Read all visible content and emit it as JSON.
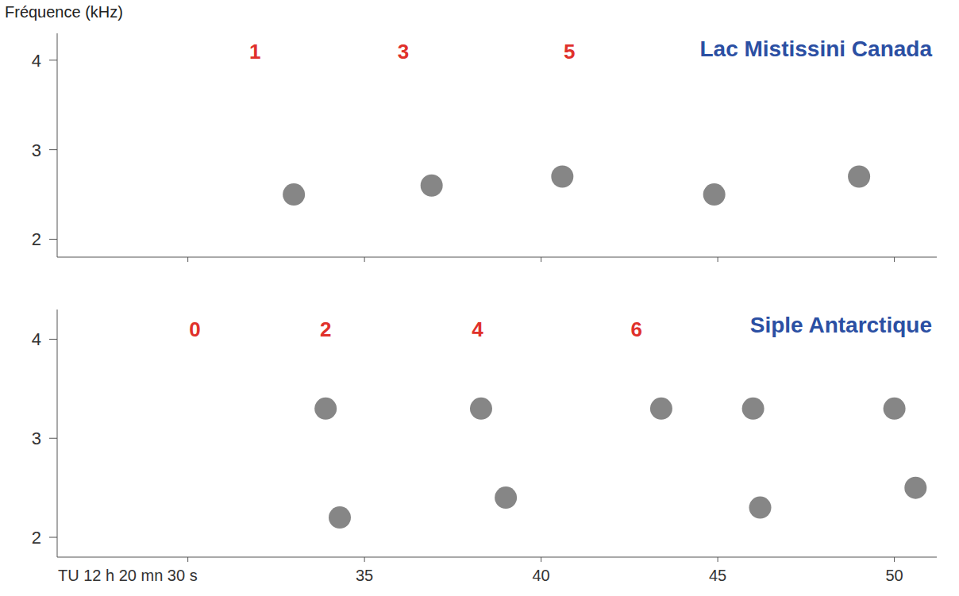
{
  "chart_data": [
    {
      "type": "scatter",
      "title": "Lac Mistissini Canada",
      "ylabel": "Fréquence (kHz)",
      "x": [
        33.0,
        36.9,
        40.6,
        44.9,
        49.0
      ],
      "values": [
        2.5,
        2.6,
        2.7,
        2.5,
        2.7
      ],
      "color": "#222222",
      "marker": "circle",
      "xlim": [
        26.3,
        51.2
      ],
      "ylim": [
        1.8,
        4.3
      ],
      "xticks": [
        30,
        35,
        40,
        45,
        50
      ],
      "yticks": [
        2,
        3,
        4
      ],
      "tick_labels": "y",
      "annotations": [
        {
          "text": "1",
          "x": 31.9,
          "y": 4.1,
          "color": "#e0312b"
        },
        {
          "text": "3",
          "x": 36.1,
          "y": 4.1,
          "color": "#e0312b"
        },
        {
          "text": "5",
          "x": 40.8,
          "y": 4.1,
          "color": "#e0312b"
        }
      ]
    },
    {
      "type": "scatter",
      "title": "Siple Antarctique",
      "x": [
        33.9,
        34.3,
        38.3,
        39.0,
        43.4,
        46.0,
        46.2,
        50.0,
        50.6
      ],
      "values": [
        3.3,
        2.2,
        3.3,
        2.4,
        3.3,
        3.3,
        2.3,
        3.3,
        2.5
      ],
      "color": "#222222",
      "marker": "circle",
      "xlim": [
        26.3,
        51.2
      ],
      "ylim": [
        1.8,
        4.3
      ],
      "xticks": [
        {
          "value": 30,
          "label": "TU 12 h 20 mn 30 s"
        },
        35,
        40,
        45,
        50
      ],
      "yticks": [
        2,
        3,
        4
      ],
      "tick_labels": true,
      "annotations": [
        {
          "text": "0",
          "x": 30.2,
          "y": 4.1,
          "color": "#e0312b"
        },
        {
          "text": "2",
          "x": 33.9,
          "y": 4.1,
          "color": "#e0312b"
        },
        {
          "text": "4",
          "x": 38.2,
          "y": 4.1,
          "color": "#e0312b"
        },
        {
          "text": "6",
          "x": 42.7,
          "y": 4.1,
          "color": "#e0312b"
        }
      ]
    }
  ]
}
